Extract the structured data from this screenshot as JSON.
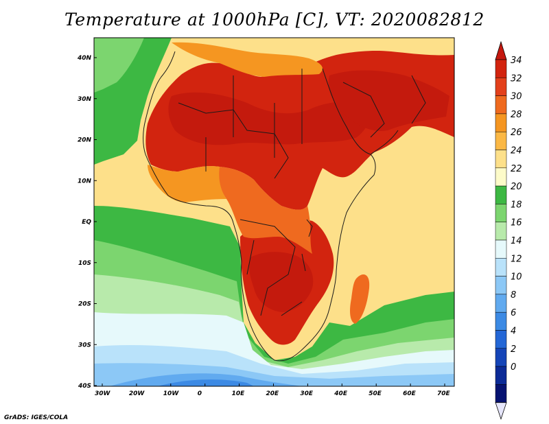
{
  "title": "Temperature at 1000hPa [C], VT: 2020082812",
  "credit": "GrADS: IGES/COLA",
  "map": {
    "lon_ticks": [
      "30W",
      "20W",
      "10W",
      "0",
      "10E",
      "20E",
      "30E",
      "40E",
      "50E",
      "60E",
      "70E"
    ],
    "lat_ticks": [
      "40N",
      "30N",
      "20N",
      "10N",
      "EQ",
      "10S",
      "20S",
      "30S",
      "40S"
    ]
  },
  "colorbar": {
    "labels": [
      "34",
      "32",
      "30",
      "28",
      "26",
      "24",
      "22",
      "20",
      "18",
      "16",
      "14",
      "12",
      "10",
      "8",
      "6",
      "4",
      "2",
      "0"
    ],
    "colors": [
      "#d2240f",
      "#e3401b",
      "#ef6a1f",
      "#f59621",
      "#fbb845",
      "#fde08a",
      "#fdfbc9",
      "#3db843",
      "#7cd56f",
      "#b8eaab",
      "#e6f9fb",
      "#b9e2fa",
      "#8cc8f6",
      "#61aaef",
      "#3c8ae4",
      "#2467d6",
      "#1545b8",
      "#0c2b97",
      "#061371"
    ],
    "top_color": "#c5180f",
    "bottom_color": "#e6e6fb"
  },
  "colors": {
    "ocean_warm": "#fde08a",
    "land_hot": "#d2240f",
    "land_very_hot": "#c41a0d",
    "land_warm": "#ef6a1f",
    "land_mild": "#f59621",
    "sea_green": "#3db843",
    "sea_lightgreen": "#7cd56f",
    "sea_palegreen": "#b8eaab",
    "sea_cyan": "#e6f9fb",
    "sea_lightblue": "#b9e2fa",
    "sea_blue": "#8cc8f6",
    "sea_deepblue": "#61aaef",
    "sea_darkerblue": "#3c8ae4",
    "boundary": "#1a1a1a"
  }
}
